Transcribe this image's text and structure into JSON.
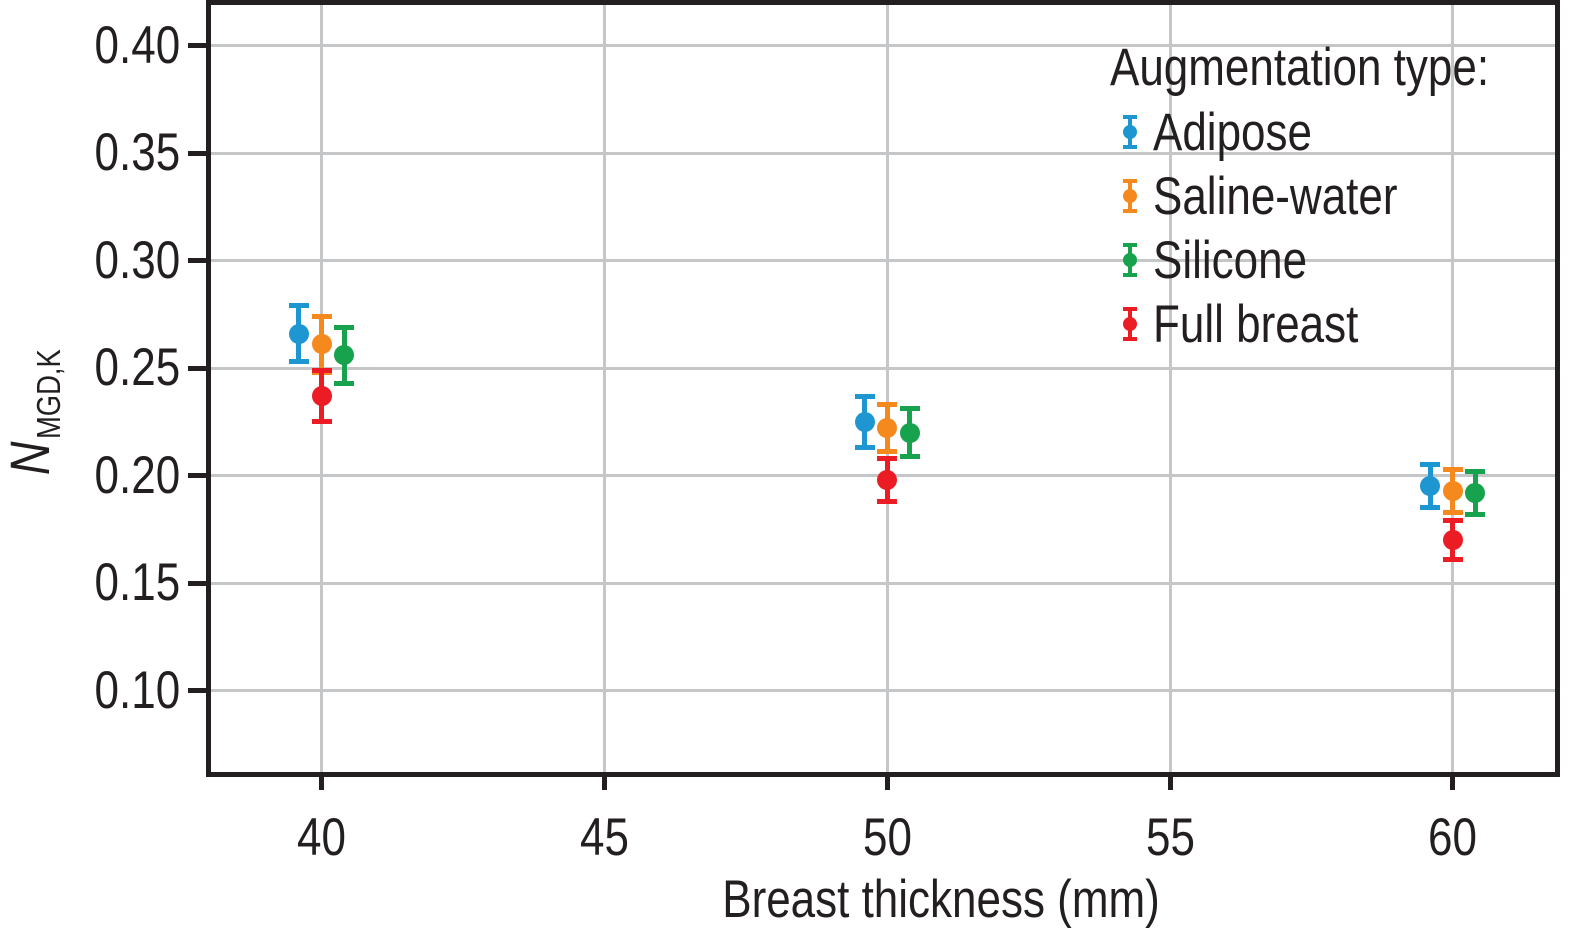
{
  "figure": {
    "background": "#ffffff",
    "text_color": "#231f20",
    "grid_color": "#c5c6c8",
    "axis_color": "#231f20"
  },
  "chart_data": {
    "type": "scatter",
    "xlabel": "Breast thickness (mm)",
    "ylabel": {
      "symbol": "N",
      "subscript": "MGD,K"
    },
    "xlim": [
      38.0,
      61.85
    ],
    "ylim": [
      0.061,
      0.42
    ],
    "grid": true,
    "xticks": [
      {
        "value": 40,
        "label": "40"
      },
      {
        "value": 45,
        "label": "45"
      },
      {
        "value": 50,
        "label": "50"
      },
      {
        "value": 55,
        "label": "55"
      },
      {
        "value": 60,
        "label": "60"
      }
    ],
    "yticks": [
      {
        "value": 0.1,
        "label": "0.10"
      },
      {
        "value": 0.15,
        "label": "0.15"
      },
      {
        "value": 0.2,
        "label": "0.20"
      },
      {
        "value": 0.25,
        "label": "0.25"
      },
      {
        "value": 0.3,
        "label": "0.30"
      },
      {
        "value": 0.35,
        "label": "0.35"
      },
      {
        "value": 0.4,
        "label": "0.40"
      }
    ],
    "legend": {
      "title": "Augmentation type:",
      "position": "top-right"
    },
    "series": [
      {
        "name": "Adipose",
        "color": "#1e96d2",
        "x_offset": -0.4,
        "points": [
          {
            "x": 40,
            "y": 0.266,
            "yerr": 0.013
          },
          {
            "x": 50,
            "y": 0.225,
            "yerr": 0.012
          },
          {
            "x": 60,
            "y": 0.195,
            "yerr": 0.01
          }
        ]
      },
      {
        "name": "Saline-water",
        "color": "#f6891e",
        "x_offset": 0,
        "points": [
          {
            "x": 40,
            "y": 0.261,
            "yerr": 0.013
          },
          {
            "x": 50,
            "y": 0.222,
            "yerr": 0.011
          },
          {
            "x": 60,
            "y": 0.193,
            "yerr": 0.01
          }
        ]
      },
      {
        "name": "Silicone",
        "color": "#17a24e",
        "x_offset": 0.4,
        "points": [
          {
            "x": 40,
            "y": 0.256,
            "yerr": 0.013
          },
          {
            "x": 50,
            "y": 0.22,
            "yerr": 0.011
          },
          {
            "x": 60,
            "y": 0.192,
            "yerr": 0.01
          }
        ]
      },
      {
        "name": "Full breast",
        "color": "#ec1c24",
        "x_offset": 0,
        "points": [
          {
            "x": 40,
            "y": 0.237,
            "yerr": 0.012
          },
          {
            "x": 50,
            "y": 0.198,
            "yerr": 0.01
          },
          {
            "x": 60,
            "y": 0.17,
            "yerr": 0.009
          }
        ]
      }
    ]
  }
}
